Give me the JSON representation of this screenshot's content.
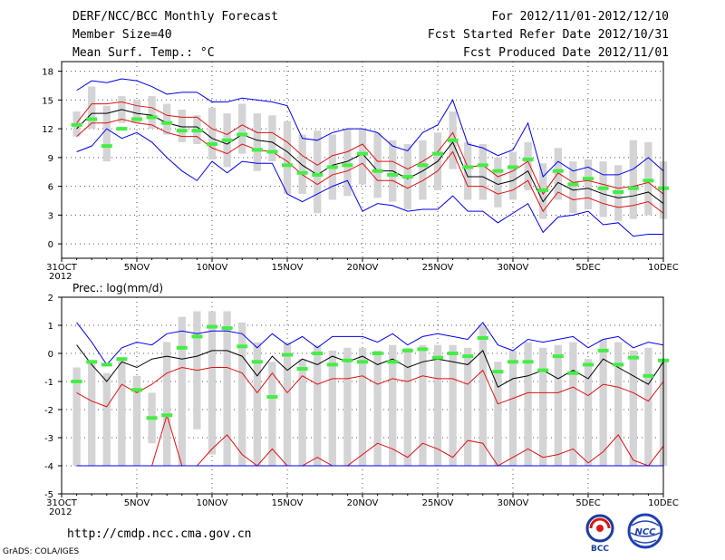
{
  "header": {
    "title": "DERF/NCC/BCC Monthly Forecast",
    "member_size": "Member Size=40",
    "variable": "Mean Surf. Temp.: °C",
    "period": "For 2012/11/01-2012/12/10",
    "fcst_started": "Fcst Started Refer Date 2012/10/31",
    "fcst_produced": "Fcst Produced Date 2012/11/01"
  },
  "footer": {
    "url": "http://cmdp.ncc.cma.gov.cn",
    "credit": "GrADS: COLA/IGES",
    "logo_bcc": "BCC",
    "logo_ncc": "NCC"
  },
  "colors": {
    "mean": "#000000",
    "spread": "#e01010",
    "envelope": "#0000ee",
    "box": "#d4d4d6",
    "observed": "#44ee44",
    "grid": "#555555"
  },
  "chart_data": [
    {
      "type": "line",
      "title": "Mean Surf. Temp.: °C",
      "xlabel": "",
      "ylabel": "",
      "x_ticks": [
        {
          "day": 0,
          "label": "31OCT"
        },
        {
          "day": 5,
          "label": "5NOV"
        },
        {
          "day": 10,
          "label": "10NOV"
        },
        {
          "day": 15,
          "label": "15NOV"
        },
        {
          "day": 20,
          "label": "20NOV"
        },
        {
          "day": 25,
          "label": "25NOV"
        },
        {
          "day": 30,
          "label": "30NOV"
        },
        {
          "day": 35,
          "label": "5DEC"
        },
        {
          "day": 40,
          "label": "10DEC"
        }
      ],
      "x_year_label": "2012",
      "xlim": [
        0,
        40
      ],
      "ylim": [
        -1.5,
        19
      ],
      "yticks": [
        0,
        3,
        6,
        9,
        12,
        15,
        18
      ],
      "grid": true,
      "days": [
        1,
        2,
        3,
        4,
        5,
        6,
        7,
        8,
        9,
        10,
        11,
        12,
        13,
        14,
        15,
        16,
        17,
        18,
        19,
        20,
        21,
        22,
        23,
        24,
        25,
        26,
        27,
        28,
        29,
        30,
        31,
        32,
        33,
        34,
        35,
        36,
        37,
        38,
        39,
        40
      ],
      "series": [
        {
          "name": "ensemble_max",
          "color_key": "envelope",
          "values": [
            16,
            17,
            16.8,
            17.2,
            17,
            16.4,
            15.6,
            15.8,
            15.8,
            14.8,
            14.8,
            15.2,
            15,
            14.8,
            14.4,
            11,
            10.8,
            11.6,
            12,
            12,
            11.6,
            10.2,
            9.7,
            11.6,
            12.4,
            15,
            10.4,
            10,
            9.2,
            9.8,
            12.6,
            7,
            8.6,
            7.6,
            8,
            7.2,
            7.2,
            7.8,
            9,
            7.6
          ]
        },
        {
          "name": "upper_spread",
          "color_key": "spread",
          "values": [
            12.6,
            14.6,
            14.6,
            14.8,
            14.4,
            14.2,
            13.4,
            13.2,
            13.2,
            12,
            11.4,
            12.4,
            11.6,
            11.6,
            10.6,
            9.2,
            8.2,
            9.2,
            9.6,
            10.4,
            8.6,
            8.6,
            7.8,
            8.6,
            9.6,
            11.6,
            8,
            8.2,
            7,
            7.6,
            8.6,
            5.2,
            7.4,
            6.4,
            6.6,
            6.2,
            5.8,
            6,
            6.4,
            5.2
          ]
        },
        {
          "name": "ensemble_mean",
          "color_key": "mean",
          "values": [
            12,
            13.6,
            13.6,
            14,
            13.6,
            13.4,
            12.6,
            12.2,
            12.2,
            11,
            10.4,
            11.4,
            10.8,
            10.6,
            9.6,
            8.2,
            7.2,
            8.2,
            8.6,
            9.4,
            7.6,
            7.6,
            6.8,
            7.6,
            8.6,
            10.6,
            7,
            7,
            6.2,
            6.6,
            7.6,
            4.4,
            6.4,
            5.6,
            5.8,
            5.2,
            4.8,
            5,
            5.4,
            4.2
          ]
        },
        {
          "name": "lower_spread",
          "color_key": "spread",
          "values": [
            11.2,
            12.6,
            12.6,
            13,
            12.6,
            12.4,
            11.6,
            11.2,
            11.2,
            10,
            9.4,
            10.4,
            9.8,
            9.6,
            8.6,
            7.2,
            6.2,
            7.2,
            7.6,
            8.4,
            6.6,
            6.6,
            5.8,
            6.6,
            7.6,
            9.6,
            6,
            6,
            5.2,
            5.6,
            6.6,
            3.4,
            5.4,
            4.6,
            4.8,
            4.2,
            3.8,
            4,
            4.4,
            3.2
          ]
        },
        {
          "name": "ensemble_min",
          "color_key": "envelope",
          "values": [
            9.6,
            10.2,
            12,
            11,
            11.6,
            10.6,
            9,
            7.6,
            6.6,
            8.6,
            7.4,
            8.6,
            8.4,
            8.4,
            5.2,
            4.4,
            5.2,
            6,
            6.6,
            3.4,
            4.2,
            4,
            3.4,
            3.6,
            3.6,
            5,
            3.4,
            3.4,
            2.2,
            3.2,
            4.2,
            1.2,
            2.8,
            3,
            3.4,
            2,
            2.2,
            0.8,
            1,
            1
          ]
        }
      ],
      "boxes": [
        {
          "low": 11.2,
          "high": 13.8
        },
        {
          "low": 12,
          "high": 16.4
        },
        {
          "low": 8.6,
          "high": 14.4
        },
        {
          "low": 12.6,
          "high": 15.4
        },
        {
          "low": 12.6,
          "high": 15
        },
        {
          "low": 12,
          "high": 15.4
        },
        {
          "low": 11.4,
          "high": 14.6
        },
        {
          "low": 10.6,
          "high": 14
        },
        {
          "low": 10.4,
          "high": 13.4
        },
        {
          "low": 8.8,
          "high": 14.2
        },
        {
          "low": 8,
          "high": 13.6
        },
        {
          "low": 9.4,
          "high": 14.6
        },
        {
          "low": 7.6,
          "high": 13.6
        },
        {
          "low": 8.6,
          "high": 13.4
        },
        {
          "low": 5.2,
          "high": 12.8
        },
        {
          "low": 5.2,
          "high": 11.4
        },
        {
          "low": 3.2,
          "high": 11.8
        },
        {
          "low": 4.6,
          "high": 11.4
        },
        {
          "low": 5,
          "high": 12
        },
        {
          "low": 6.2,
          "high": 12
        },
        {
          "low": 4.8,
          "high": 11.6
        },
        {
          "low": 4.4,
          "high": 10.8
        },
        {
          "low": 3.6,
          "high": 10.4
        },
        {
          "low": 4.6,
          "high": 10.8
        },
        {
          "low": 5.6,
          "high": 11.6
        },
        {
          "low": 7.8,
          "high": 13.8
        },
        {
          "low": 4.6,
          "high": 10.6
        },
        {
          "low": 4.6,
          "high": 10.4
        },
        {
          "low": 3.8,
          "high": 9
        },
        {
          "low": 4.6,
          "high": 9.6
        },
        {
          "low": 5.6,
          "high": 10.6
        },
        {
          "low": 2.6,
          "high": 8.4
        },
        {
          "low": 4.6,
          "high": 10
        },
        {
          "low": 3.2,
          "high": 8.6
        },
        {
          "low": 3.6,
          "high": 8.8
        },
        {
          "low": 2.8,
          "high": 8.6
        },
        {
          "low": 2.4,
          "high": 8.2
        },
        {
          "low": 2.6,
          "high": 10.8
        },
        {
          "low": 3,
          "high": 10.6
        },
        {
          "low": 2.6,
          "high": 8.6
        }
      ],
      "observed": [
        12.4,
        13,
        10.2,
        12,
        13,
        13.2,
        12.6,
        11.8,
        11.8,
        10.4,
        10.8,
        11.4,
        9.8,
        9.6,
        8.2,
        7.4,
        7.2,
        8,
        8.2,
        9.4,
        7.6,
        7.2,
        7,
        8.2,
        9.4,
        10.8,
        8,
        8.2,
        7.6,
        8,
        8.8,
        5.6,
        7.6,
        6.2,
        6.8,
        5.8,
        5.4,
        5.8,
        6.6,
        5.8
      ]
    },
    {
      "type": "line",
      "title": "Prec.: log(mm/d)",
      "xlabel": "",
      "ylabel": "",
      "x_ticks": [
        {
          "day": 0,
          "label": "31OCT"
        },
        {
          "day": 5,
          "label": "5NOV"
        },
        {
          "day": 10,
          "label": "10NOV"
        },
        {
          "day": 15,
          "label": "15NOV"
        },
        {
          "day": 20,
          "label": "20NOV"
        },
        {
          "day": 25,
          "label": "25NOV"
        },
        {
          "day": 30,
          "label": "30NOV"
        },
        {
          "day": 35,
          "label": "5DEC"
        },
        {
          "day": 40,
          "label": "10DEC"
        }
      ],
      "x_year_label": "2012",
      "xlim": [
        0,
        40
      ],
      "ylim": [
        -5,
        2
      ],
      "yticks": [
        -5,
        -4,
        -3,
        -2,
        -1,
        0,
        1,
        2
      ],
      "grid": true,
      "days": [
        1,
        2,
        3,
        4,
        5,
        6,
        7,
        8,
        9,
        10,
        11,
        12,
        13,
        14,
        15,
        16,
        17,
        18,
        19,
        20,
        21,
        22,
        23,
        24,
        25,
        26,
        27,
        28,
        29,
        30,
        31,
        32,
        33,
        34,
        35,
        36,
        37,
        38,
        39,
        40
      ],
      "series": [
        {
          "name": "ensemble_max",
          "color_key": "envelope",
          "values": [
            1.1,
            0.4,
            -0.4,
            0.2,
            0.4,
            0.3,
            0.7,
            0.8,
            0.7,
            0.8,
            0.8,
            0.7,
            0.2,
            0.7,
            0.3,
            0.6,
            0.2,
            0.6,
            0.6,
            0.6,
            0.4,
            0.7,
            0.3,
            0.6,
            0.7,
            0.6,
            0.5,
            1.1,
            0.3,
            0.1,
            0.5,
            0.4,
            0.5,
            0.6,
            0.2,
            0.5,
            0.6,
            0.2,
            0.4,
            0.3
          ]
        },
        {
          "name": "ensemble_mean",
          "color_key": "mean",
          "values": [
            0.3,
            -0.4,
            -1,
            -0.3,
            -0.5,
            -0.2,
            -0.1,
            -0.2,
            -0.1,
            0.1,
            0.1,
            -0.1,
            -0.8,
            -0.1,
            -0.6,
            -0.2,
            -0.4,
            -0.1,
            -0.3,
            -0.1,
            -0.4,
            -0.2,
            -0.5,
            -0.3,
            -0.2,
            -0.3,
            -0.4,
            0.1,
            -1.2,
            -0.9,
            -0.8,
            -0.6,
            -0.9,
            -0.6,
            -0.9,
            -0.2,
            -0.5,
            -0.8,
            -1.1,
            -0.3
          ]
        },
        {
          "name": "ensemble_min_upper",
          "color_key": "spread",
          "values": [
            -1.4,
            -1.7,
            -1.9,
            -1.1,
            -1.4,
            -1.1,
            -0.7,
            -0.5,
            -0.6,
            -0.5,
            -0.5,
            -0.7,
            -1.4,
            -0.7,
            -1.4,
            -0.8,
            -1.1,
            -0.9,
            -0.9,
            -0.8,
            -1.1,
            -0.9,
            -1,
            -0.8,
            -0.9,
            -0.9,
            -1.1,
            -0.6,
            -1.8,
            -1.6,
            -1.4,
            -1.4,
            -1.4,
            -1.2,
            -1.5,
            -1.1,
            -1.2,
            -1.4,
            -1.7,
            -1
          ]
        },
        {
          "name": "ensemble_min_lower",
          "color_key": "spread",
          "values": [
            -4,
            -4,
            -4,
            -4,
            -4,
            -4,
            -2.2,
            -4,
            -4,
            -3.4,
            -2.9,
            -3.6,
            -4,
            -3.4,
            -4,
            -4,
            -3.7,
            -4,
            -4,
            -3.6,
            -3.2,
            -3.4,
            -3.7,
            -3.2,
            -3.4,
            -3.7,
            -3.1,
            -3.2,
            -4,
            -3.7,
            -3.4,
            -3.7,
            -3.6,
            -3.4,
            -3.9,
            -3.5,
            -2.9,
            -3.8,
            -4,
            -3.3
          ]
        },
        {
          "name": "floor",
          "color_key": "envelope",
          "values": [
            -4,
            -4,
            -4,
            -4,
            -4,
            -4,
            -4,
            -4,
            -4,
            -4,
            -4,
            -4,
            -4,
            -4,
            -4,
            -4,
            -4,
            -4,
            -4,
            -4,
            -4,
            -4,
            -4,
            -4,
            -4,
            -4,
            -4,
            -4,
            -4,
            -4,
            -4,
            -4,
            -4,
            -4,
            -4,
            -4,
            -4,
            -4,
            -4,
            -4
          ]
        }
      ],
      "boxes": [
        {
          "low": -4,
          "high": -0.5
        },
        {
          "low": -4,
          "high": -0.3
        },
        {
          "low": -4,
          "high": -0.7
        },
        {
          "low": -4,
          "high": -0.2
        },
        {
          "low": -4,
          "high": -0.8
        },
        {
          "low": -3.2,
          "high": -1.4
        },
        {
          "low": -4,
          "high": 0.4
        },
        {
          "low": -4,
          "high": 1.3
        },
        {
          "low": -2.7,
          "high": 1.5
        },
        {
          "low": -3.6,
          "high": 1.5
        },
        {
          "low": -4,
          "high": 1.5
        },
        {
          "low": -4,
          "high": 1.1
        },
        {
          "low": -4,
          "high": 0.4
        },
        {
          "low": -4,
          "high": -0.3
        },
        {
          "low": -4,
          "high": 0.4
        },
        {
          "low": -4,
          "high": -0.2
        },
        {
          "low": -4,
          "high": 0.3
        },
        {
          "low": -4,
          "high": 0.1
        },
        {
          "low": -4,
          "high": 0.2
        },
        {
          "low": -4,
          "high": 0.2
        },
        {
          "low": -4,
          "high": 0.1
        },
        {
          "low": -4,
          "high": 0.3
        },
        {
          "low": -4,
          "high": 0.2
        },
        {
          "low": -4,
          "high": 0.3
        },
        {
          "low": -4,
          "high": 0.3
        },
        {
          "low": -4,
          "high": 0.3
        },
        {
          "low": -4,
          "high": 0.2
        },
        {
          "low": -4,
          "high": 1
        },
        {
          "low": -4,
          "high": -0.3
        },
        {
          "low": -4,
          "high": 0.1
        },
        {
          "low": -4,
          "high": 0.4
        },
        {
          "low": -4,
          "high": 0.2
        },
        {
          "low": -4,
          "high": 0.3
        },
        {
          "low": -4,
          "high": 0.4
        },
        {
          "low": -4,
          "high": -0.2
        },
        {
          "low": -4,
          "high": 0.5
        },
        {
          "low": -4,
          "high": 0.4
        },
        {
          "low": -4,
          "high": 0.1
        },
        {
          "low": -4,
          "high": 0.2
        },
        {
          "low": -4,
          "high": -0.2
        }
      ],
      "observed": [
        -1,
        -0.3,
        -0.4,
        -0.2,
        -1.3,
        -2.3,
        -2.2,
        0.2,
        0.6,
        0.95,
        0.9,
        0.25,
        -0.3,
        -1.55,
        -0.05,
        -0.55,
        0,
        -0.4,
        -0.25,
        -0.3,
        0,
        -0.3,
        0.1,
        0.15,
        -0.15,
        0,
        -0.1,
        0.55,
        -0.65,
        -0.3,
        -0.3,
        -0.6,
        -0.1,
        -0.7,
        -0.4,
        0.1,
        -0.4,
        -0.15,
        -0.8,
        -0.25
      ]
    }
  ]
}
